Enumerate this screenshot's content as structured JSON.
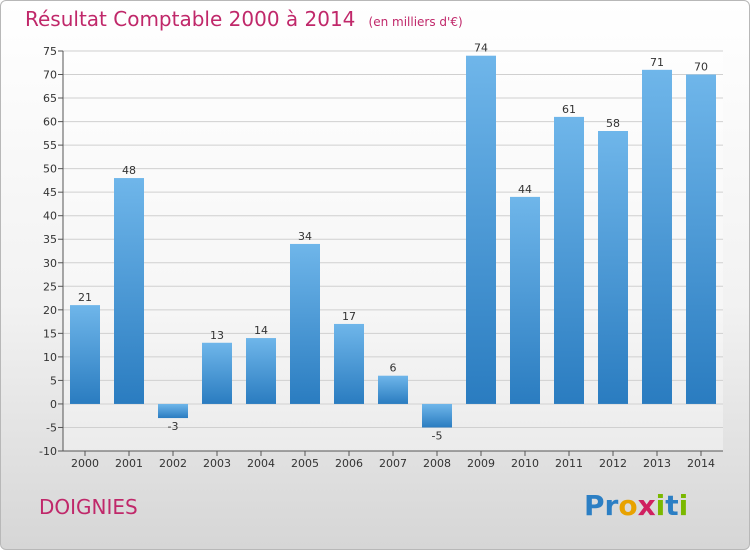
{
  "header": {
    "title": "Résultat Comptable 2000 à 2014",
    "subtitle": "(en milliers d'€)"
  },
  "footer": {
    "commune": "DOIGNIES"
  },
  "logo": {
    "text": "Proxiti",
    "letters": [
      {
        "ch": "P",
        "color": "#2c7fc4"
      },
      {
        "ch": "r",
        "color": "#2c7fc4"
      },
      {
        "ch": "o",
        "color": "#e8a200"
      },
      {
        "ch": "x",
        "color": "#d02060"
      },
      {
        "ch": "i",
        "color": "#7ab800"
      },
      {
        "ch": "t",
        "color": "#2c7fc4"
      },
      {
        "ch": "i",
        "color": "#7ab800"
      }
    ]
  },
  "colors": {
    "bar_light": "#6fb6ea",
    "bar_dark": "#2a7cc0",
    "grid": "#d0d0d0",
    "axis": "#555555",
    "accent": "#c0286a"
  },
  "chart_data": {
    "type": "bar",
    "title": "Résultat Comptable 2000 à 2014",
    "subtitle": "(en milliers d'€)",
    "categories": [
      "2000",
      "2001",
      "2002",
      "2003",
      "2004",
      "2005",
      "2006",
      "2007",
      "2008",
      "2009",
      "2010",
      "2011",
      "2012",
      "2013",
      "2014"
    ],
    "values": [
      21,
      48,
      -3,
      13,
      14,
      34,
      17,
      6,
      -5,
      74,
      44,
      61,
      58,
      71,
      70
    ],
    "ylim": [
      -10,
      75
    ],
    "yticks": [
      -10,
      -5,
      0,
      5,
      10,
      15,
      20,
      25,
      30,
      35,
      40,
      45,
      50,
      55,
      60,
      65,
      70,
      75
    ],
    "grid": true,
    "legend": "none"
  }
}
